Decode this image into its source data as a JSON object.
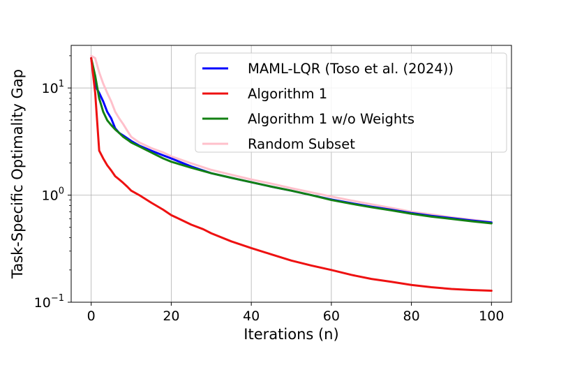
{
  "chart_data": {
    "type": "line",
    "title": "",
    "xlabel": "Iterations (n)",
    "ylabel": "Task-Specific Optimality Gap",
    "xscale": "linear",
    "yscale": "log",
    "xlim": [
      -5,
      105
    ],
    "ylim": [
      0.1,
      25
    ],
    "grid": true,
    "legend_position": "top-right",
    "x_ticks": [
      0,
      20,
      40,
      60,
      80,
      100
    ],
    "x_tick_labels": [
      "0",
      "20",
      "40",
      "60",
      "80",
      "100"
    ],
    "y_ticks": [
      {
        "value": 0.1,
        "base": "10",
        "exp": "−1"
      },
      {
        "value": 1,
        "base": "10",
        "exp": "0"
      },
      {
        "value": 10,
        "base": "10",
        "exp": "1"
      }
    ],
    "series": [
      {
        "name": "MAML-LQR (Toso et al. (2024))",
        "color": "#0000ff",
        "points": [
          [
            0,
            19
          ],
          [
            1,
            10.5
          ],
          [
            2,
            9
          ],
          [
            3,
            7.5
          ],
          [
            4,
            6
          ],
          [
            5,
            5.2
          ],
          [
            6,
            4.2
          ],
          [
            7,
            3.8
          ],
          [
            8,
            3.6
          ],
          [
            9,
            3.4
          ],
          [
            10,
            3.2
          ],
          [
            12,
            2.9
          ],
          [
            15,
            2.6
          ],
          [
            18,
            2.35
          ],
          [
            20,
            2.2
          ],
          [
            25,
            1.85
          ],
          [
            30,
            1.6
          ],
          [
            35,
            1.45
          ],
          [
            40,
            1.32
          ],
          [
            45,
            1.2
          ],
          [
            50,
            1.1
          ],
          [
            55,
            1.0
          ],
          [
            60,
            0.91
          ],
          [
            65,
            0.84
          ],
          [
            70,
            0.78
          ],
          [
            75,
            0.73
          ],
          [
            80,
            0.68
          ],
          [
            85,
            0.64
          ],
          [
            90,
            0.61
          ],
          [
            95,
            0.58
          ],
          [
            100,
            0.555
          ]
        ]
      },
      {
        "name": "Algorithm 1",
        "color": "#ee1111",
        "points": [
          [
            0,
            19
          ],
          [
            1,
            9
          ],
          [
            2,
            2.6
          ],
          [
            3,
            2.2
          ],
          [
            4,
            1.9
          ],
          [
            5,
            1.7
          ],
          [
            6,
            1.5
          ],
          [
            7,
            1.4
          ],
          [
            8,
            1.3
          ],
          [
            9,
            1.2
          ],
          [
            10,
            1.1
          ],
          [
            12,
            1.0
          ],
          [
            15,
            0.85
          ],
          [
            18,
            0.73
          ],
          [
            20,
            0.65
          ],
          [
            22,
            0.6
          ],
          [
            25,
            0.53
          ],
          [
            28,
            0.48
          ],
          [
            30,
            0.44
          ],
          [
            35,
            0.37
          ],
          [
            40,
            0.32
          ],
          [
            45,
            0.28
          ],
          [
            50,
            0.245
          ],
          [
            55,
            0.22
          ],
          [
            60,
            0.2
          ],
          [
            65,
            0.18
          ],
          [
            70,
            0.165
          ],
          [
            75,
            0.155
          ],
          [
            80,
            0.145
          ],
          [
            85,
            0.138
          ],
          [
            90,
            0.133
          ],
          [
            95,
            0.13
          ],
          [
            100,
            0.128
          ]
        ]
      },
      {
        "name": "Algorithm 1 w/o Weights",
        "color": "#138013",
        "points": [
          [
            0,
            19
          ],
          [
            1,
            13
          ],
          [
            2,
            8
          ],
          [
            3,
            6
          ],
          [
            4,
            5
          ],
          [
            5,
            4.5
          ],
          [
            6,
            4.1
          ],
          [
            7,
            3.8
          ],
          [
            8,
            3.5
          ],
          [
            9,
            3.3
          ],
          [
            10,
            3.1
          ],
          [
            12,
            2.85
          ],
          [
            15,
            2.5
          ],
          [
            18,
            2.2
          ],
          [
            20,
            2.05
          ],
          [
            25,
            1.8
          ],
          [
            30,
            1.6
          ],
          [
            35,
            1.45
          ],
          [
            40,
            1.32
          ],
          [
            45,
            1.2
          ],
          [
            50,
            1.1
          ],
          [
            55,
            1.0
          ],
          [
            60,
            0.9
          ],
          [
            65,
            0.83
          ],
          [
            70,
            0.77
          ],
          [
            75,
            0.72
          ],
          [
            80,
            0.67
          ],
          [
            85,
            0.63
          ],
          [
            90,
            0.6
          ],
          [
            95,
            0.57
          ],
          [
            100,
            0.545
          ]
        ]
      },
      {
        "name": "Random Subset",
        "color": "#ffc0cb",
        "points": [
          [
            0,
            20
          ],
          [
            1,
            19
          ],
          [
            2,
            14
          ],
          [
            3,
            11
          ],
          [
            4,
            9
          ],
          [
            5,
            7.5
          ],
          [
            6,
            6
          ],
          [
            7,
            5.2
          ],
          [
            8,
            4.6
          ],
          [
            9,
            4
          ],
          [
            10,
            3.5
          ],
          [
            12,
            3.1
          ],
          [
            15,
            2.75
          ],
          [
            18,
            2.5
          ],
          [
            20,
            2.3
          ],
          [
            25,
            1.98
          ],
          [
            30,
            1.72
          ],
          [
            35,
            1.55
          ],
          [
            40,
            1.4
          ],
          [
            45,
            1.28
          ],
          [
            50,
            1.16
          ],
          [
            55,
            1.06
          ],
          [
            60,
            0.97
          ],
          [
            65,
            0.89
          ],
          [
            70,
            0.82
          ],
          [
            75,
            0.76
          ],
          [
            80,
            0.7
          ],
          [
            85,
            0.66
          ],
          [
            90,
            0.62
          ],
          [
            95,
            0.59
          ],
          [
            100,
            0.56
          ]
        ]
      }
    ]
  }
}
